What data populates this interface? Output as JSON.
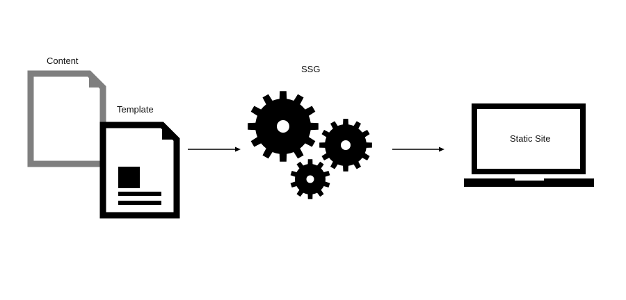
{
  "labels": {
    "content": "Content",
    "template": "Template",
    "ssg": "SSG",
    "static_site": "Static Site"
  },
  "colors": {
    "content_doc": "#7f7f7f",
    "ink": "#000000",
    "background": "#ffffff"
  },
  "icons": {
    "content": "document-icon",
    "template": "template-document-icon",
    "ssg": "gears-icon",
    "static_site": "laptop-icon"
  }
}
